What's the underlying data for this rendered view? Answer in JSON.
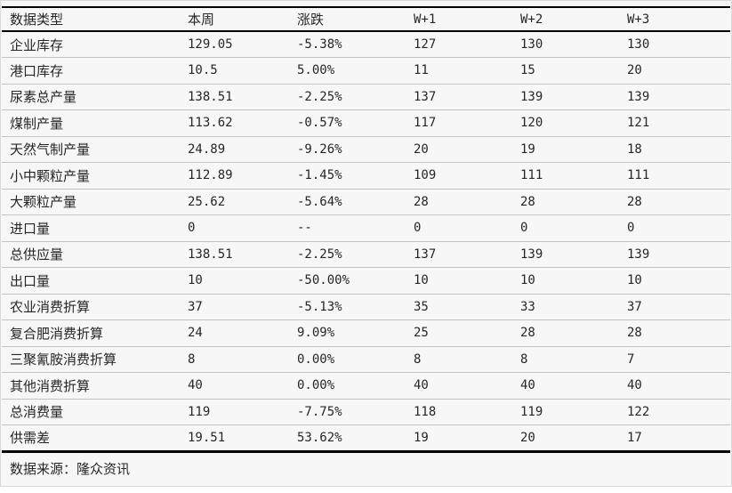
{
  "chart_data": {
    "type": "table",
    "columns": [
      "数据类型",
      "本周",
      "涨跌",
      "W+1",
      "W+2",
      "W+3"
    ],
    "rows": [
      {
        "label": "企业库存",
        "values": [
          "129.05",
          "-5.38%",
          "127",
          "130",
          "130"
        ]
      },
      {
        "label": "港口库存",
        "values": [
          "10.5",
          "5.00%",
          "11",
          "15",
          "20"
        ]
      },
      {
        "label": "尿素总产量",
        "values": [
          "138.51",
          "-2.25%",
          "137",
          "139",
          "139"
        ]
      },
      {
        "label": "煤制产量",
        "values": [
          "113.62",
          "-0.57%",
          "117",
          "120",
          "121"
        ]
      },
      {
        "label": "天然气制产量",
        "values": [
          "24.89",
          "-9.26%",
          "20",
          "19",
          "18"
        ]
      },
      {
        "label": "小中颗粒产量",
        "values": [
          "112.89",
          "-1.45%",
          "109",
          "111",
          "111"
        ]
      },
      {
        "label": "大颗粒产量",
        "values": [
          "25.62",
          "-5.64%",
          "28",
          "28",
          "28"
        ]
      },
      {
        "label": "进口量",
        "values": [
          "0",
          "--",
          "0",
          "0",
          "0"
        ]
      },
      {
        "label": "总供应量",
        "values": [
          "138.51",
          "-2.25%",
          "137",
          "139",
          "139"
        ]
      },
      {
        "label": "出口量",
        "values": [
          "10",
          "-50.00%",
          "10",
          "10",
          "10"
        ]
      },
      {
        "label": "农业消费折算",
        "values": [
          "37",
          "-5.13%",
          "35",
          "33",
          "37"
        ]
      },
      {
        "label": "复合肥消费折算",
        "values": [
          "24",
          "9.09%",
          "25",
          "28",
          "28"
        ]
      },
      {
        "label": "三聚氰胺消费折算",
        "values": [
          "8",
          "0.00%",
          "8",
          "8",
          "7"
        ]
      },
      {
        "label": "其他消费折算",
        "values": [
          "40",
          "0.00%",
          "40",
          "40",
          "40"
        ]
      },
      {
        "label": "总消费量",
        "values": [
          "119",
          "-7.75%",
          "118",
          "119",
          "122"
        ]
      },
      {
        "label": "供需差",
        "values": [
          "19.51",
          "53.62%",
          "19",
          "20",
          "17"
        ]
      }
    ]
  },
  "footer": {
    "source_text": "数据来源：隆众资讯"
  },
  "colors": {
    "background": "#f7f7f7",
    "heavy_rule": "#000000",
    "row_separator": "#c3c3c3",
    "text": "#262626",
    "frame_border": "#d9d9d9"
  }
}
